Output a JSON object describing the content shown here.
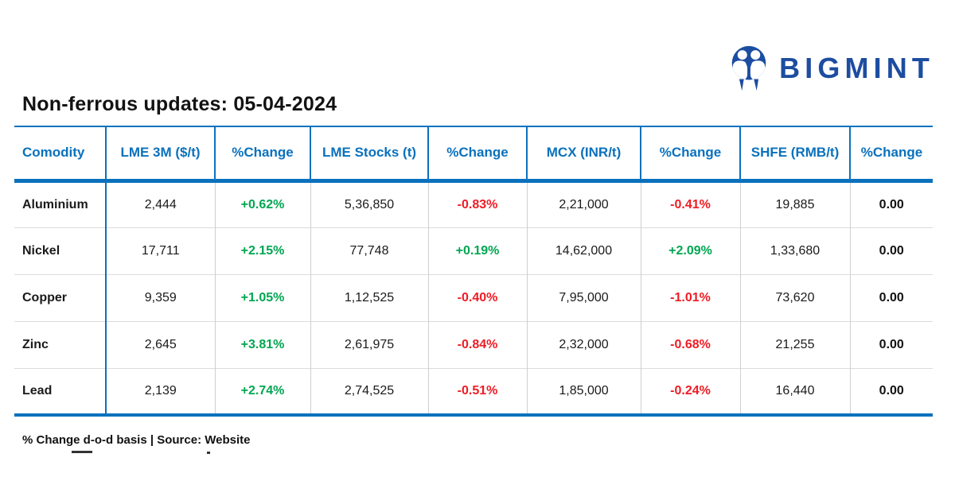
{
  "logo": {
    "text": "BIGMINT",
    "icon": "bigmint-people-icon"
  },
  "title": "Non-ferrous updates: 05-04-2024",
  "footer": {
    "note": "% Change d-o-d basis | Source: Website"
  },
  "colors": {
    "table_blue": "#0a71bd",
    "brand_navy": "#1c4da0",
    "positive_green": "#00a651",
    "negative_red": "#ee1c24"
  },
  "table": {
    "headers": [
      "Comodity",
      "LME 3M ($/t)",
      "%Change",
      "LME Stocks (t)",
      "%Change",
      "MCX (INR/t)",
      "%Change",
      "SHFE (RMB/t)",
      "%Change"
    ],
    "rows": [
      [
        "Aluminium",
        "2,444",
        "+0.62%",
        "5,36,850",
        "-0.83%",
        "2,21,000",
        "-0.41%",
        "19,885",
        "0.00"
      ],
      [
        "Nickel",
        "17,711",
        "+2.15%",
        "77,748",
        "+0.19%",
        "14,62,000",
        "+2.09%",
        "1,33,680",
        "0.00"
      ],
      [
        "Copper",
        "9,359",
        "+1.05%",
        "1,12,525",
        "-0.40%",
        "7,95,000",
        "-1.01%",
        "73,620",
        "0.00"
      ],
      [
        "Zinc",
        "2,645",
        "+3.81%",
        "2,61,975",
        "-0.84%",
        "2,32,000",
        "-0.68%",
        "21,255",
        "0.00"
      ],
      [
        "Lead",
        "2,139",
        "+2.74%",
        "2,74,525",
        "-0.51%",
        "1,85,000",
        "-0.24%",
        "16,440",
        "0.00"
      ]
    ]
  }
}
